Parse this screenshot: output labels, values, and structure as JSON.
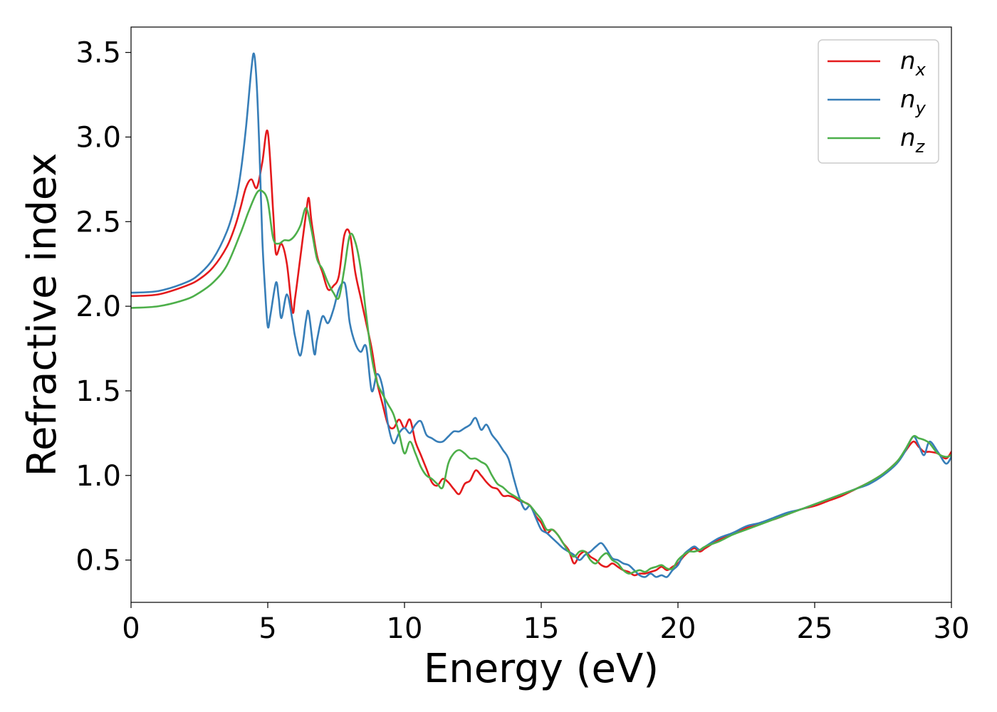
{
  "chart_data": {
    "type": "line",
    "title": "",
    "xlabel": "Energy (eV)",
    "ylabel": "Refractive index",
    "xlim": [
      0,
      30
    ],
    "ylim": [
      0.25,
      3.65
    ],
    "xticks": [
      0,
      5,
      10,
      15,
      20,
      25,
      30
    ],
    "xtick_labels": [
      "0",
      "5",
      "10",
      "15",
      "20",
      "25",
      "30"
    ],
    "yticks": [
      0.5,
      1.0,
      1.5,
      2.0,
      2.5,
      3.0,
      3.5
    ],
    "ytick_labels": [
      "0.5",
      "1.0",
      "1.5",
      "2.0",
      "2.5",
      "3.0",
      "3.5"
    ],
    "grid": false,
    "legend_position": "top-right",
    "series": [
      {
        "name": "n_x",
        "legend_main": "n",
        "legend_sub": "x",
        "color": "#e41a1c",
        "x": [
          0,
          1,
          2,
          2.5,
          3,
          3.5,
          3.8,
          4,
          4.2,
          4.4,
          4.6,
          4.8,
          5.0,
          5.2,
          5.3,
          5.5,
          5.7,
          5.9,
          6.0,
          6.2,
          6.4,
          6.5,
          6.6,
          6.8,
          7.0,
          7.2,
          7.4,
          7.6,
          7.8,
          8.0,
          8.2,
          8.4,
          8.6,
          8.8,
          9.0,
          9.2,
          9.4,
          9.6,
          9.8,
          10.0,
          10.2,
          10.4,
          10.6,
          10.8,
          11.0,
          11.2,
          11.4,
          11.6,
          11.8,
          12.0,
          12.2,
          12.4,
          12.6,
          12.8,
          13.0,
          13.2,
          13.4,
          13.6,
          13.8,
          14.0,
          14.2,
          14.4,
          14.6,
          14.8,
          15.0,
          15.2,
          15.4,
          15.6,
          15.8,
          16.0,
          16.2,
          16.4,
          16.6,
          16.8,
          17.0,
          17.2,
          17.4,
          17.6,
          17.8,
          18.0,
          18.2,
          18.4,
          18.6,
          18.8,
          19.0,
          19.2,
          19.4,
          19.6,
          19.8,
          20.0,
          20.2,
          20.4,
          20.6,
          20.8,
          21.0,
          21.5,
          22.0,
          22.5,
          23.0,
          23.5,
          24.0,
          24.5,
          25.0,
          25.5,
          26.0,
          26.5,
          27.0,
          27.5,
          28.0,
          28.3,
          28.6,
          28.8,
          29.0,
          29.2,
          29.5,
          29.8,
          30.0
        ],
        "values": [
          2.06,
          2.07,
          2.12,
          2.16,
          2.23,
          2.35,
          2.47,
          2.58,
          2.7,
          2.75,
          2.7,
          2.85,
          3.03,
          2.55,
          2.31,
          2.37,
          2.25,
          1.97,
          2.05,
          2.3,
          2.55,
          2.64,
          2.5,
          2.3,
          2.2,
          2.1,
          2.12,
          2.18,
          2.42,
          2.43,
          2.2,
          2.05,
          1.9,
          1.75,
          1.55,
          1.42,
          1.3,
          1.28,
          1.33,
          1.28,
          1.33,
          1.2,
          1.12,
          1.04,
          0.96,
          0.94,
          0.98,
          0.96,
          0.92,
          0.89,
          0.95,
          0.97,
          1.03,
          1.0,
          0.96,
          0.93,
          0.92,
          0.88,
          0.88,
          0.87,
          0.85,
          0.84,
          0.82,
          0.76,
          0.72,
          0.66,
          0.68,
          0.65,
          0.6,
          0.56,
          0.48,
          0.53,
          0.55,
          0.52,
          0.5,
          0.47,
          0.46,
          0.48,
          0.46,
          0.44,
          0.43,
          0.41,
          0.42,
          0.42,
          0.43,
          0.44,
          0.46,
          0.44,
          0.46,
          0.48,
          0.52,
          0.55,
          0.57,
          0.55,
          0.57,
          0.62,
          0.66,
          0.69,
          0.72,
          0.74,
          0.77,
          0.8,
          0.82,
          0.85,
          0.88,
          0.92,
          0.96,
          1.01,
          1.08,
          1.14,
          1.2,
          1.17,
          1.14,
          1.14,
          1.13,
          1.1,
          1.14
        ]
      },
      {
        "name": "n_y",
        "legend_main": "n",
        "legend_sub": "y",
        "color": "#377eb8",
        "x": [
          0,
          1,
          2,
          2.5,
          3,
          3.5,
          3.8,
          4.0,
          4.2,
          4.4,
          4.5,
          4.6,
          4.7,
          4.8,
          4.9,
          5.0,
          5.1,
          5.3,
          5.4,
          5.5,
          5.7,
          5.9,
          6.0,
          6.2,
          6.4,
          6.5,
          6.7,
          6.8,
          7.0,
          7.2,
          7.4,
          7.6,
          7.8,
          7.9,
          8.0,
          8.2,
          8.4,
          8.6,
          8.8,
          9.0,
          9.2,
          9.4,
          9.6,
          9.8,
          10.0,
          10.2,
          10.4,
          10.6,
          10.8,
          11.0,
          11.2,
          11.4,
          11.6,
          11.8,
          12.0,
          12.2,
          12.4,
          12.6,
          12.8,
          13.0,
          13.2,
          13.4,
          13.6,
          13.8,
          14.0,
          14.2,
          14.4,
          14.6,
          14.8,
          15.0,
          15.2,
          15.4,
          15.6,
          15.8,
          16.0,
          16.2,
          16.4,
          16.6,
          16.8,
          17.0,
          17.2,
          17.4,
          17.6,
          17.8,
          18.0,
          18.2,
          18.4,
          18.6,
          18.8,
          19.0,
          19.2,
          19.4,
          19.6,
          19.8,
          20.0,
          20.2,
          20.4,
          20.6,
          20.8,
          21.0,
          21.5,
          22.0,
          22.5,
          23.0,
          23.5,
          24.0,
          24.5,
          25.0,
          25.5,
          26.0,
          26.5,
          27.0,
          27.5,
          28.0,
          28.3,
          28.6,
          28.8,
          29.0,
          29.2,
          29.5,
          29.8,
          30.0
        ],
        "values": [
          2.08,
          2.09,
          2.14,
          2.19,
          2.28,
          2.44,
          2.6,
          2.78,
          3.05,
          3.4,
          3.49,
          3.3,
          2.9,
          2.4,
          2.1,
          1.88,
          1.95,
          2.14,
          2.05,
          1.93,
          2.07,
          1.92,
          1.82,
          1.71,
          1.92,
          1.96,
          1.72,
          1.8,
          1.94,
          1.9,
          1.98,
          2.1,
          2.14,
          2.05,
          1.9,
          1.78,
          1.73,
          1.76,
          1.5,
          1.6,
          1.52,
          1.3,
          1.19,
          1.25,
          1.28,
          1.25,
          1.3,
          1.32,
          1.24,
          1.22,
          1.2,
          1.2,
          1.23,
          1.26,
          1.26,
          1.28,
          1.3,
          1.34,
          1.27,
          1.3,
          1.24,
          1.2,
          1.15,
          1.1,
          0.98,
          0.87,
          0.8,
          0.82,
          0.75,
          0.68,
          0.66,
          0.63,
          0.6,
          0.57,
          0.55,
          0.53,
          0.5,
          0.53,
          0.55,
          0.58,
          0.6,
          0.56,
          0.51,
          0.5,
          0.48,
          0.47,
          0.44,
          0.41,
          0.4,
          0.42,
          0.4,
          0.41,
          0.4,
          0.44,
          0.47,
          0.53,
          0.56,
          0.58,
          0.56,
          0.58,
          0.63,
          0.66,
          0.7,
          0.72,
          0.75,
          0.78,
          0.8,
          0.83,
          0.86,
          0.89,
          0.92,
          0.95,
          1.0,
          1.07,
          1.14,
          1.23,
          1.18,
          1.12,
          1.2,
          1.14,
          1.07,
          1.11
        ]
      },
      {
        "name": "n_z",
        "legend_main": "n",
        "legend_sub": "z",
        "color": "#4daf4a",
        "x": [
          0,
          1,
          2,
          2.5,
          3,
          3.5,
          4.0,
          4.3,
          4.6,
          4.8,
          5.0,
          5.2,
          5.4,
          5.6,
          5.8,
          6.0,
          6.2,
          6.4,
          6.6,
          6.8,
          7.0,
          7.2,
          7.4,
          7.6,
          7.8,
          8.0,
          8.2,
          8.4,
          8.6,
          8.8,
          9.0,
          9.2,
          9.4,
          9.6,
          9.8,
          10.0,
          10.2,
          10.4,
          10.6,
          10.8,
          11.0,
          11.2,
          11.4,
          11.6,
          11.8,
          12.0,
          12.2,
          12.4,
          12.6,
          12.8,
          13.0,
          13.2,
          13.4,
          13.6,
          13.8,
          14.0,
          14.2,
          14.4,
          14.6,
          14.8,
          15.0,
          15.2,
          15.4,
          15.6,
          15.8,
          16.0,
          16.2,
          16.4,
          16.6,
          16.8,
          17.0,
          17.2,
          17.4,
          17.6,
          17.8,
          18.0,
          18.2,
          18.4,
          18.6,
          18.8,
          19.0,
          19.2,
          19.4,
          19.6,
          19.8,
          20.0,
          20.2,
          20.4,
          20.6,
          20.8,
          21.0,
          21.5,
          22.0,
          22.5,
          23.0,
          23.5,
          24.0,
          24.5,
          25.0,
          25.5,
          26.0,
          26.5,
          27.0,
          27.5,
          28.0,
          28.3,
          28.6,
          28.8,
          29.0,
          29.2,
          29.5,
          29.8,
          30.0
        ],
        "values": [
          1.99,
          2.0,
          2.04,
          2.08,
          2.14,
          2.24,
          2.43,
          2.56,
          2.67,
          2.68,
          2.62,
          2.4,
          2.37,
          2.39,
          2.39,
          2.42,
          2.48,
          2.58,
          2.45,
          2.28,
          2.22,
          2.14,
          2.08,
          2.05,
          2.22,
          2.42,
          2.38,
          2.22,
          1.95,
          1.7,
          1.55,
          1.48,
          1.42,
          1.36,
          1.25,
          1.13,
          1.2,
          1.13,
          1.05,
          1.0,
          0.98,
          0.95,
          0.93,
          1.07,
          1.13,
          1.15,
          1.13,
          1.1,
          1.1,
          1.08,
          1.06,
          1.0,
          0.95,
          0.93,
          0.9,
          0.88,
          0.86,
          0.84,
          0.82,
          0.78,
          0.74,
          0.68,
          0.68,
          0.65,
          0.6,
          0.55,
          0.52,
          0.55,
          0.55,
          0.5,
          0.48,
          0.52,
          0.54,
          0.5,
          0.48,
          0.44,
          0.42,
          0.43,
          0.44,
          0.43,
          0.45,
          0.46,
          0.47,
          0.45,
          0.45,
          0.5,
          0.53,
          0.55,
          0.55,
          0.56,
          0.58,
          0.61,
          0.65,
          0.68,
          0.71,
          0.74,
          0.77,
          0.8,
          0.83,
          0.86,
          0.89,
          0.92,
          0.96,
          1.01,
          1.08,
          1.15,
          1.23,
          1.22,
          1.21,
          1.19,
          1.13,
          1.11,
          1.12
        ]
      }
    ]
  }
}
